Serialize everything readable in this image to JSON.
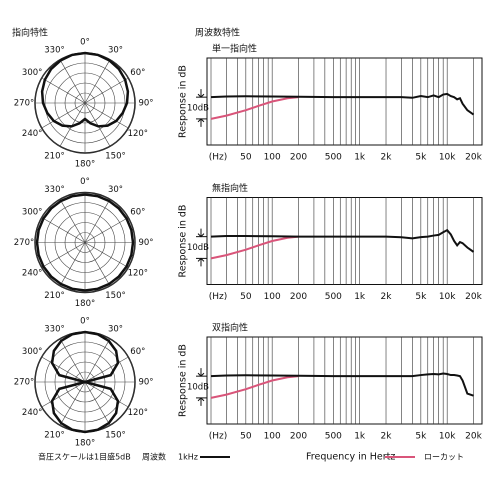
{
  "headings": {
    "polar": "指向特性",
    "frequency": "周波数特性"
  },
  "footer": {
    "scale_note": "音圧スケールは1目盛5dB",
    "freq_label": "周波数",
    "xlabel": "Frequency in Hertz",
    "legend": [
      {
        "label": "1kHz",
        "color": "#111111"
      },
      {
        "label": "ローカット",
        "color": "#d9557a"
      }
    ]
  },
  "chart_data": [
    {
      "type": "polar",
      "rlim": [
        -25,
        0
      ],
      "rticks": [
        -20,
        -15,
        -10,
        -5,
        0
      ],
      "thetaticks": [
        {
          "value": 0,
          "label": "0°"
        },
        {
          "value": 30,
          "label": "30°"
        },
        {
          "value": 60,
          "label": "60°"
        },
        {
          "value": 90,
          "label": "90°"
        },
        {
          "value": 120,
          "label": "120°"
        },
        {
          "value": 150,
          "label": "150°"
        },
        {
          "value": 180,
          "label": "180°"
        },
        {
          "value": 210,
          "label": "210°"
        },
        {
          "value": 240,
          "label": "240°"
        },
        {
          "value": 270,
          "label": "270°"
        },
        {
          "value": 300,
          "label": "300°"
        },
        {
          "value": 330,
          "label": "330°"
        }
      ],
      "theta": [
        0,
        15,
        30,
        45,
        60,
        75,
        90,
        105,
        120,
        135,
        150,
        165,
        180,
        195,
        210,
        225,
        240,
        255,
        270,
        285,
        300,
        315,
        330,
        345
      ],
      "color": "#111111",
      "values": [
        0,
        -0.1,
        -0.5,
        -1,
        -1.8,
        -2.8,
        -4,
        -5.5,
        -7,
        -9,
        -11.5,
        -14.5,
        -17,
        -14.5,
        -11.5,
        -9,
        -7,
        -5.5,
        -4,
        -2.8,
        -1.8,
        -1,
        -0.5,
        -0.1
      ]
    },
    {
      "type": "polar",
      "rlim": [
        -25,
        0
      ],
      "rticks": [
        -20,
        -15,
        -10,
        -5,
        0
      ],
      "thetaticks": [
        {
          "value": 0,
          "label": "0°"
        },
        {
          "value": 30,
          "label": "30°"
        },
        {
          "value": 60,
          "label": "60°"
        },
        {
          "value": 90,
          "label": "90°"
        },
        {
          "value": 120,
          "label": "120°"
        },
        {
          "value": 150,
          "label": "150°"
        },
        {
          "value": 180,
          "label": "180°"
        },
        {
          "value": 210,
          "label": "210°"
        },
        {
          "value": 240,
          "label": "240°"
        },
        {
          "value": 270,
          "label": "270°"
        },
        {
          "value": 300,
          "label": "300°"
        },
        {
          "value": 330,
          "label": "330°"
        }
      ],
      "theta": [
        0,
        15,
        30,
        45,
        60,
        75,
        90,
        105,
        120,
        135,
        150,
        165,
        180,
        195,
        210,
        225,
        240,
        255,
        270,
        285,
        300,
        315,
        330,
        345
      ],
      "color": "#111111",
      "values": [
        -1,
        -1,
        -1,
        -1,
        -1,
        -1,
        -1,
        -1,
        -1,
        -1,
        -1,
        -1,
        -1,
        -1,
        -1,
        -1,
        -1,
        -1,
        -1,
        -1,
        -1,
        -1,
        -1,
        -1
      ]
    },
    {
      "type": "polar",
      "rlim": [
        -25,
        0
      ],
      "rticks": [
        -20,
        -15,
        -10,
        -5,
        0
      ],
      "thetaticks": [
        {
          "value": 0,
          "label": "0°"
        },
        {
          "value": 30,
          "label": "30°"
        },
        {
          "value": 60,
          "label": "60°"
        },
        {
          "value": 90,
          "label": "90°"
        },
        {
          "value": 120,
          "label": "120°"
        },
        {
          "value": 150,
          "label": "150°"
        },
        {
          "value": 180,
          "label": "180°"
        },
        {
          "value": 210,
          "label": "210°"
        },
        {
          "value": 240,
          "label": "240°"
        },
        {
          "value": 270,
          "label": "270°"
        },
        {
          "value": 300,
          "label": "300°"
        },
        {
          "value": 330,
          "label": "330°"
        }
      ],
      "theta": [
        0,
        15,
        30,
        45,
        60,
        75,
        90,
        105,
        120,
        135,
        150,
        165,
        180,
        195,
        210,
        225,
        240,
        255,
        270,
        285,
        300,
        315,
        330,
        345
      ],
      "color": "#111111",
      "values": [
        0,
        -0.3,
        -1.25,
        -3,
        -6,
        -11.7,
        -25,
        -11.7,
        -6,
        -3,
        -1.25,
        -0.3,
        0,
        -0.3,
        -1.25,
        -3,
        -6,
        -11.7,
        -25,
        -11.7,
        -6,
        -3,
        -1.25,
        -0.3
      ]
    },
    {
      "type": "line",
      "title": "単一指向性",
      "ylabel": "Response in dB",
      "log_x": true,
      "xlim": [
        18,
        25000
      ],
      "ylim": [
        -22,
        18
      ],
      "xticks": [
        {
          "value": 20,
          "label": "(Hz)"
        },
        50,
        100,
        200,
        500,
        {
          "value": 1000,
          "label": "1k"
        },
        {
          "value": 2000,
          "label": "2k"
        },
        {
          "value": 5000,
          "label": "5k"
        },
        {
          "value": 10000,
          "label": "10k"
        },
        {
          "value": 20000,
          "label": "20k"
        }
      ],
      "xgrid": [
        20,
        30,
        40,
        50,
        60,
        70,
        80,
        90,
        100,
        200,
        300,
        400,
        500,
        600,
        700,
        800,
        900,
        1000,
        2000,
        3000,
        4000,
        5000,
        6000,
        7000,
        8000,
        9000,
        10000,
        20000
      ],
      "scale_bar": {
        "label": "10dB",
        "values": [
          0,
          -10
        ]
      },
      "series": [
        {
          "color": "#111111",
          "x": [
            20,
            30,
            50,
            100,
            200,
            500,
            1000,
            2000,
            3000,
            4000,
            5000,
            6000,
            7000,
            8000,
            9000,
            10000,
            11000,
            12000,
            13000,
            14000,
            15000,
            17000,
            20000
          ],
          "values": [
            0,
            0.3,
            0.4,
            0.3,
            0.2,
            0,
            0,
            0,
            0,
            -0.3,
            0.5,
            0,
            0.8,
            0,
            1.2,
            1.5,
            0.5,
            0,
            -1,
            -0.5,
            -3,
            -6,
            -8
          ]
        },
        {
          "color": "#d9557a",
          "x": [
            20,
            30,
            50,
            70,
            100,
            150,
            200
          ],
          "values": [
            -10,
            -8.5,
            -6,
            -4,
            -2,
            -0.5,
            0
          ]
        }
      ]
    },
    {
      "type": "line",
      "title": "無指向性",
      "ylabel": "Response in dB",
      "log_x": true,
      "xlim": [
        18,
        25000
      ],
      "ylim": [
        -22,
        18
      ],
      "xticks": [
        {
          "value": 20,
          "label": "(Hz)"
        },
        50,
        100,
        200,
        500,
        {
          "value": 1000,
          "label": "1k"
        },
        {
          "value": 2000,
          "label": "2k"
        },
        {
          "value": 5000,
          "label": "5k"
        },
        {
          "value": 10000,
          "label": "10k"
        },
        {
          "value": 20000,
          "label": "20k"
        }
      ],
      "xgrid": [
        20,
        30,
        40,
        50,
        60,
        70,
        80,
        90,
        100,
        200,
        300,
        400,
        500,
        600,
        700,
        800,
        900,
        1000,
        2000,
        3000,
        4000,
        5000,
        6000,
        7000,
        8000,
        9000,
        10000,
        20000
      ],
      "scale_bar": {
        "label": "10dB",
        "values": [
          0,
          -10
        ]
      },
      "series": [
        {
          "color": "#111111",
          "x": [
            20,
            30,
            50,
            100,
            200,
            500,
            1000,
            2000,
            3000,
            4000,
            5000,
            6000,
            7000,
            8000,
            9000,
            10000,
            11000,
            12000,
            13000,
            14000,
            15000,
            17000,
            20000
          ],
          "values": [
            0,
            0.3,
            0.3,
            0.2,
            0,
            0,
            0,
            0,
            -0.3,
            -0.8,
            -0.2,
            0,
            0.5,
            0.8,
            2,
            3,
            1,
            -2,
            -4,
            -2.5,
            -3,
            -5,
            -7
          ]
        },
        {
          "color": "#d9557a",
          "x": [
            20,
            30,
            50,
            70,
            100,
            150,
            200
          ],
          "values": [
            -10,
            -8.5,
            -6,
            -4,
            -2,
            -0.5,
            0
          ]
        }
      ]
    },
    {
      "type": "line",
      "title": "双指向性",
      "ylabel": "Response in dB",
      "log_x": true,
      "xlim": [
        18,
        25000
      ],
      "ylim": [
        -22,
        18
      ],
      "xticks": [
        {
          "value": 20,
          "label": "(Hz)"
        },
        50,
        100,
        200,
        500,
        {
          "value": 1000,
          "label": "1k"
        },
        {
          "value": 2000,
          "label": "2k"
        },
        {
          "value": 5000,
          "label": "5k"
        },
        {
          "value": 10000,
          "label": "10k"
        },
        {
          "value": 20000,
          "label": "20k"
        }
      ],
      "xgrid": [
        20,
        30,
        40,
        50,
        60,
        70,
        80,
        90,
        100,
        200,
        300,
        400,
        500,
        600,
        700,
        800,
        900,
        1000,
        2000,
        3000,
        4000,
        5000,
        6000,
        7000,
        8000,
        9000,
        10000,
        20000
      ],
      "scale_bar": {
        "label": "10dB",
        "values": [
          0,
          -10
        ]
      },
      "series": [
        {
          "color": "#111111",
          "x": [
            20,
            30,
            50,
            100,
            200,
            500,
            1000,
            2000,
            3000,
            4000,
            5000,
            6000,
            7000,
            8000,
            9000,
            10000,
            11000,
            12000,
            13000,
            14000,
            15000,
            17000,
            20000
          ],
          "values": [
            0,
            0.3,
            0.4,
            0.3,
            0.2,
            0,
            0,
            0,
            0,
            0,
            0.5,
            0.8,
            1,
            0.8,
            1.2,
            1,
            0.5,
            0.5,
            0.3,
            0,
            -2,
            -8,
            -9
          ]
        },
        {
          "color": "#d9557a",
          "x": [
            20,
            30,
            50,
            70,
            100,
            150,
            200
          ],
          "values": [
            -10,
            -8.5,
            -6,
            -4,
            -2,
            -0.5,
            0
          ]
        }
      ]
    }
  ]
}
